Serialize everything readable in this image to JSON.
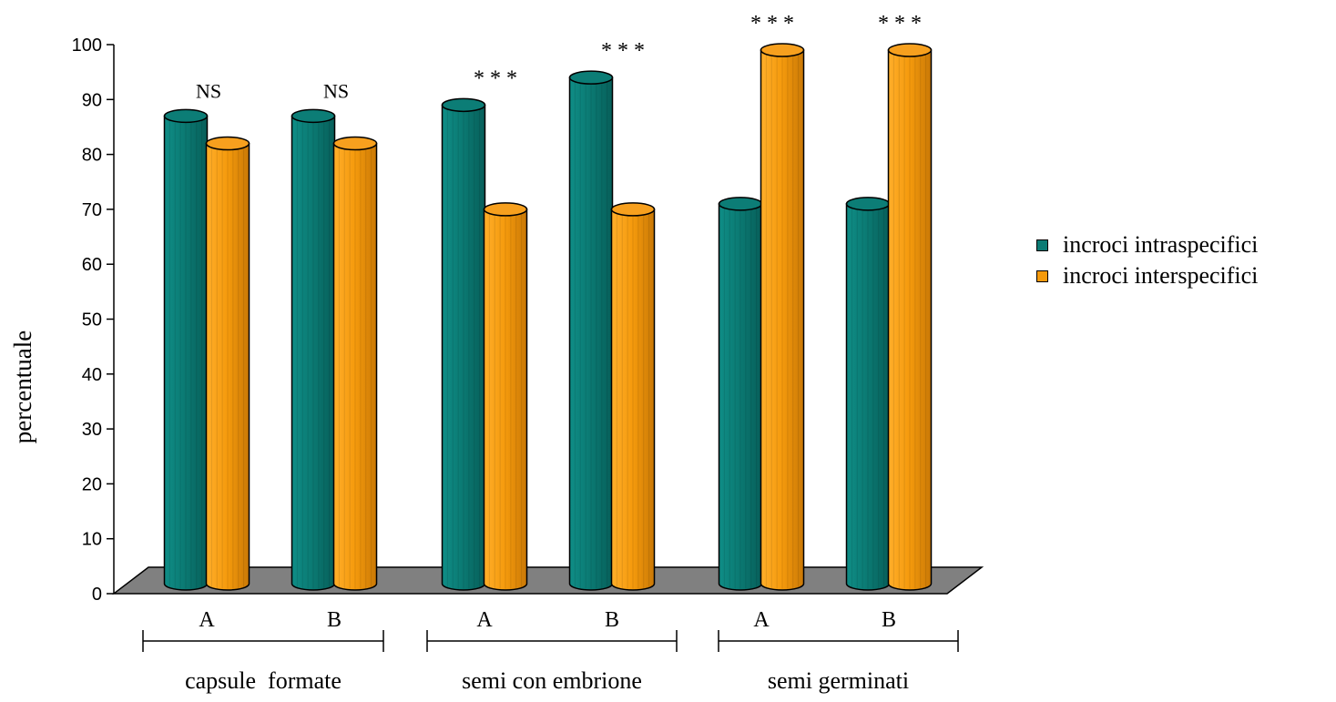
{
  "chart_data": {
    "type": "bar",
    "ylabel": "percentuale",
    "ylim": [
      0,
      100
    ],
    "yticks": [
      0,
      10,
      20,
      30,
      40,
      50,
      60,
      70,
      80,
      90,
      100
    ],
    "categories": [
      "A",
      "B",
      "A",
      "B",
      "A",
      "B"
    ],
    "groups": [
      {
        "label": "capsule  formate",
        "categories": [
          "A",
          "B"
        ]
      },
      {
        "label": "semi con embrione",
        "categories": [
          "A",
          "B"
        ]
      },
      {
        "label": "semi germinati",
        "categories": [
          "A",
          "B"
        ]
      }
    ],
    "series": [
      {
        "name": "incroci intraspecifici",
        "color": "#0b7b74",
        "values": [
          87,
          87,
          89,
          94,
          71,
          71
        ]
      },
      {
        "name": "incroci interspecifici",
        "color": "#f59a0c",
        "values": [
          82,
          82,
          70,
          70,
          99,
          99
        ]
      }
    ],
    "annotations": [
      "NS",
      "NS",
      "* * *",
      "* * *",
      "* * *",
      "* * *"
    ],
    "legend_position": "right",
    "grid": false
  }
}
